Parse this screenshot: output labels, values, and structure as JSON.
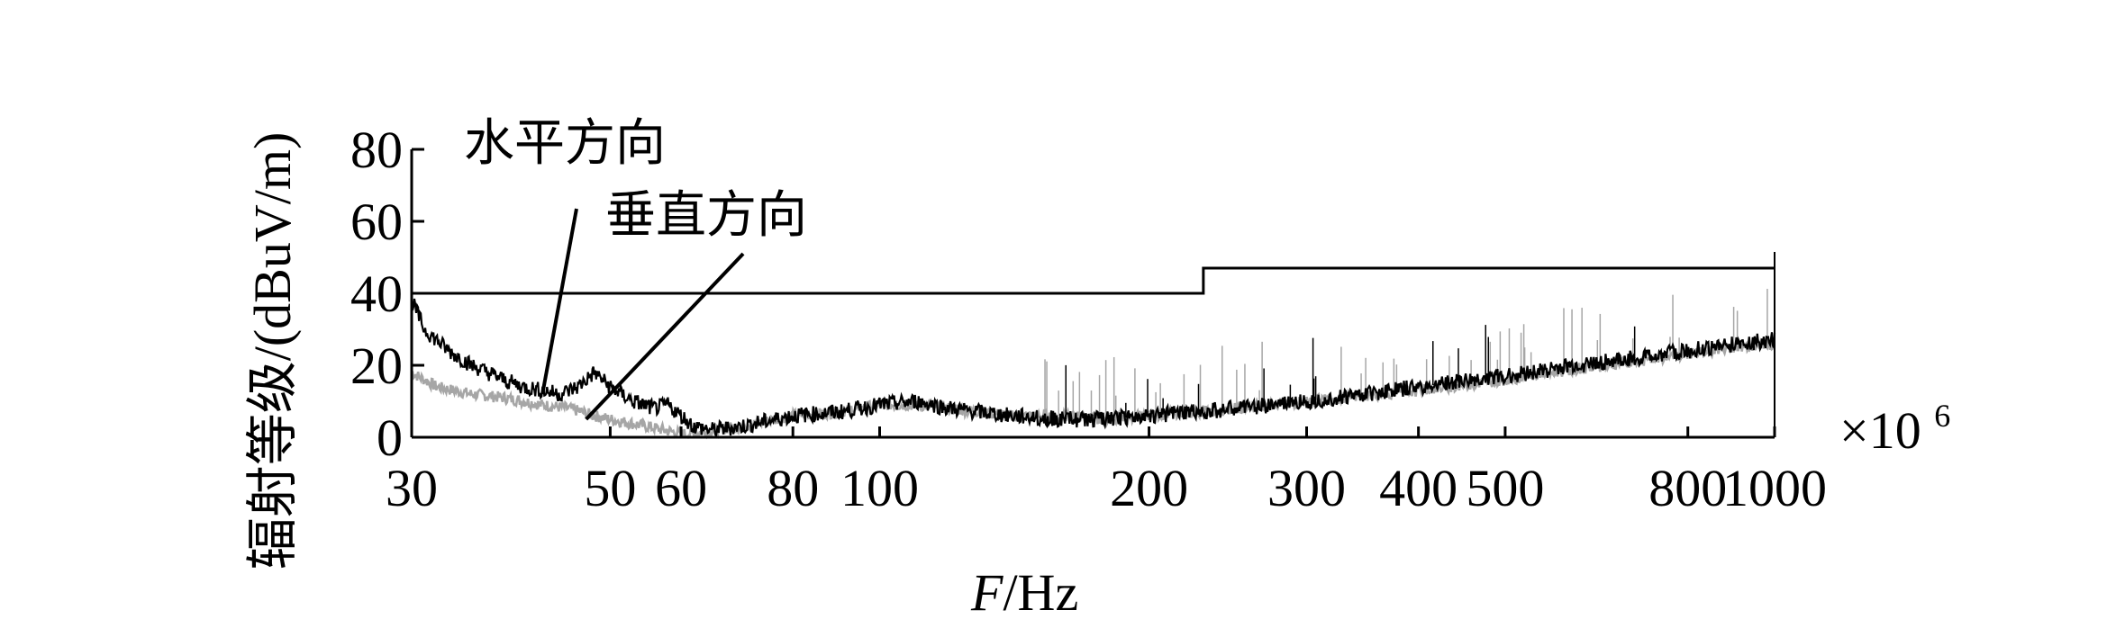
{
  "chart_data": {
    "type": "line",
    "title": "",
    "xlabel_italic": "F",
    "xlabel_unit": "/Hz",
    "ylabel": "辐射等级/(dBuV/m)",
    "x_multiplier": "×10",
    "x_multiplier_exp": "6",
    "x_scale": "log",
    "xlim": [
      30,
      1000
    ],
    "ylim": [
      0,
      80
    ],
    "x_ticks": [
      30,
      50,
      60,
      80,
      100,
      200,
      300,
      400,
      500,
      800,
      1000
    ],
    "x_tick_labels": [
      "30",
      "50",
      "60",
      "80",
      "100",
      "200",
      "300",
      "400",
      "500",
      "800",
      "1000"
    ],
    "y_ticks": [
      0,
      20,
      40,
      60,
      80
    ],
    "y_tick_labels": [
      "0",
      "20",
      "40",
      "60",
      "80"
    ],
    "grid": false,
    "annotations": [
      {
        "text": "水平方向",
        "points_to": {
          "x": 42,
          "y": 12
        }
      },
      {
        "text": "垂直方向",
        "points_to": {
          "x": 47,
          "y": 5
        }
      }
    ],
    "series": [
      {
        "color": "#000000",
        "style": "limit",
        "x": [
          30,
          230,
          230,
          1000
        ],
        "y": [
          40,
          40,
          47,
          47
        ]
      },
      {
        "color": "#000000",
        "style": "noisy",
        "x": [
          30,
          31,
          33,
          35,
          38,
          40,
          42,
          44,
          46,
          48,
          50,
          53,
          56,
          58,
          60,
          62,
          65,
          70,
          80,
          90,
          100,
          110,
          120,
          140,
          160,
          180,
          200,
          250,
          300,
          400,
          500,
          600,
          700,
          800,
          900,
          1000
        ],
        "y": [
          38,
          30,
          24,
          20,
          16,
          14,
          13,
          12,
          14,
          18,
          14,
          10,
          8,
          9,
          6,
          3,
          2,
          3,
          6,
          7,
          9,
          10,
          8,
          6,
          5,
          5,
          6,
          8,
          10,
          14,
          17,
          20,
          22,
          24,
          26,
          27
        ]
      },
      {
        "color": "#a6a6a6",
        "style": "noisy",
        "x": [
          30,
          32,
          35,
          38,
          40,
          42,
          45,
          48,
          50,
          55,
          60,
          62,
          65,
          70,
          80,
          90,
          100,
          110,
          120,
          140,
          160,
          180,
          200,
          250,
          300,
          400,
          500,
          600,
          700,
          800,
          900,
          1000
        ],
        "y": [
          18,
          14,
          12,
          11,
          10,
          9,
          8,
          6,
          5,
          3,
          1,
          1,
          2,
          3,
          6,
          7,
          9,
          9,
          8,
          6,
          6,
          5,
          6,
          8,
          10,
          13,
          16,
          19,
          21,
          23,
          25,
          26
        ]
      }
    ]
  }
}
